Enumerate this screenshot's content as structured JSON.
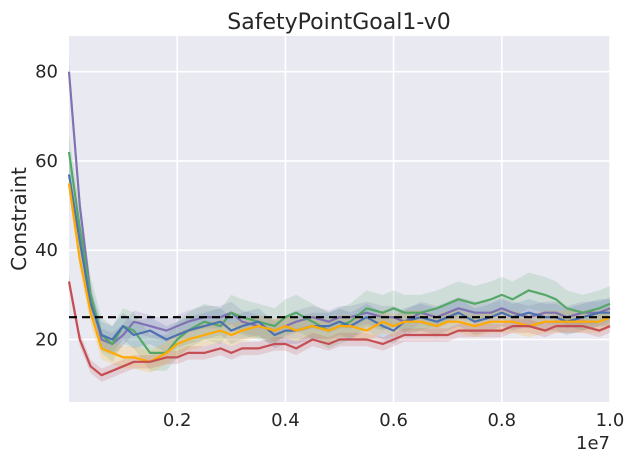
{
  "chart_data": {
    "type": "line",
    "title": "SafetyPointGoal1-v0",
    "xlabel": "",
    "ylabel": "Constraint",
    "x_offset_label": "1e7",
    "xlim": [
      0.0,
      1.0
    ],
    "ylim": [
      6,
      88
    ],
    "xticks": [
      0.2,
      0.4,
      0.6,
      0.8,
      1.0
    ],
    "xtick_labels": [
      "0.2",
      "0.4",
      "0.6",
      "0.8",
      "1.0"
    ],
    "yticks": [
      20,
      40,
      60,
      80
    ],
    "ytick_labels": [
      "20",
      "40",
      "60",
      "80"
    ],
    "grid": true,
    "background": "#e9e9f1",
    "threshold": {
      "y": 25,
      "color": "#000000",
      "style": "dashed"
    },
    "x": [
      0.0,
      0.02,
      0.04,
      0.06,
      0.08,
      0.1,
      0.12,
      0.15,
      0.18,
      0.2,
      0.22,
      0.25,
      0.28,
      0.3,
      0.32,
      0.35,
      0.38,
      0.4,
      0.42,
      0.45,
      0.48,
      0.5,
      0.52,
      0.55,
      0.58,
      0.6,
      0.62,
      0.65,
      0.68,
      0.7,
      0.72,
      0.75,
      0.78,
      0.8,
      0.82,
      0.85,
      0.88,
      0.9,
      0.92,
      0.95,
      0.98,
      1.0
    ],
    "series": [
      {
        "color": "#8172b3",
        "band": 2.5,
        "values": [
          80,
          50,
          30,
          20,
          19,
          21,
          24,
          23,
          22,
          23,
          24,
          25,
          25,
          26,
          24,
          23,
          22,
          23,
          24,
          25,
          24,
          25,
          25,
          26,
          25,
          25,
          24,
          26,
          25,
          26,
          27,
          26,
          26,
          27,
          26,
          25,
          26,
          26,
          25,
          26,
          26,
          27
        ]
      },
      {
        "color": "#55a868",
        "band": 4,
        "values": [
          62,
          45,
          30,
          21,
          19,
          23,
          22,
          17,
          17,
          20,
          22,
          24,
          23,
          26,
          25,
          24,
          23,
          25,
          26,
          24,
          22,
          23,
          24,
          27,
          26,
          27,
          26,
          26,
          27,
          28,
          29,
          28,
          29,
          30,
          29,
          31,
          30,
          29,
          27,
          26,
          27,
          28
        ]
      },
      {
        "color": "#4c72b0",
        "band": 3,
        "values": [
          57,
          42,
          28,
          21,
          20,
          23,
          21,
          22,
          20,
          21,
          22,
          23,
          24,
          22,
          23,
          24,
          21,
          22,
          22,
          23,
          23,
          24,
          23,
          25,
          23,
          22,
          24,
          25,
          24,
          25,
          26,
          24,
          25,
          26,
          25,
          26,
          25,
          25,
          24,
          25,
          26,
          26
        ]
      },
      {
        "color": "#ffaa00",
        "band": 2.5,
        "values": [
          55,
          38,
          26,
          18,
          17,
          16,
          16,
          15,
          17,
          19,
          20,
          21,
          22,
          21,
          22,
          23,
          22,
          23,
          22,
          23,
          22,
          23,
          23,
          22,
          24,
          23,
          24,
          24,
          23,
          24,
          24,
          23,
          24,
          24,
          24,
          23,
          24,
          24,
          24,
          24,
          24,
          25
        ]
      },
      {
        "color": "#c44e52",
        "band": 1.5,
        "values": [
          33,
          20,
          14,
          12,
          13,
          14,
          15,
          15,
          16,
          16,
          17,
          17,
          18,
          17,
          18,
          18,
          19,
          19,
          18,
          20,
          19,
          20,
          20,
          20,
          19,
          20,
          21,
          21,
          21,
          21,
          22,
          22,
          22,
          22,
          23,
          23,
          22,
          23,
          23,
          23,
          22,
          23
        ]
      }
    ]
  }
}
